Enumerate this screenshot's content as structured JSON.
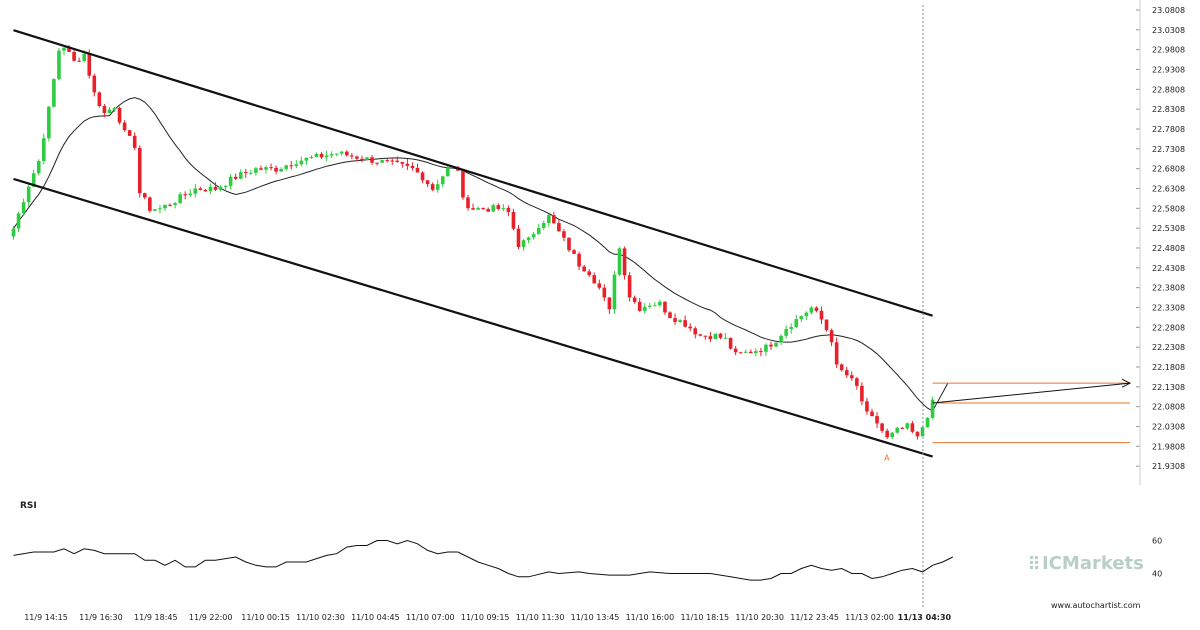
{
  "chart_data": {
    "type": "candlestick",
    "colors": {
      "up": "#2ecc40",
      "down": "#e8202a",
      "channel": "#111111",
      "ma": "#222222",
      "level": "#e8742a",
      "cursor": "#888888",
      "grid": "#dddddd"
    },
    "y_axis": {
      "range": [
        21.8908,
        23.0808
      ],
      "ticks": [
        "23.0808",
        "23.0308",
        "22.9808",
        "22.9308",
        "22.8808",
        "22.8308",
        "22.7808",
        "22.7308",
        "22.6808",
        "22.6308",
        "22.5808",
        "22.5308",
        "22.4808",
        "22.4308",
        "22.3808",
        "22.3308",
        "22.2808",
        "22.2308",
        "22.1808",
        "22.1308",
        "22.0808",
        "22.0308",
        "21.9808",
        "21.9308"
      ]
    },
    "x_axis": {
      "ticks": [
        "11/9 14:15",
        "11/9 16:30",
        "11/9 18:45",
        "11/9 22:00",
        "11/10 00:15",
        "11/10 02:30",
        "11/10 04:45",
        "11/10 07:00",
        "11/10 09:15",
        "11/10 11:30",
        "11/10 13:45",
        "11/10 16:00",
        "11/10 18:15",
        "11/10 20:30",
        "11/12 23:45",
        "11/13 02:00",
        "11/13 04:30"
      ],
      "highlighted": "11/13 04:30"
    },
    "channel": {
      "upper": {
        "from": [
          0,
          23.03
        ],
        "to": [
          182,
          22.31
        ]
      },
      "lower": {
        "from": [
          0,
          22.655
        ],
        "to": [
          182,
          21.955
        ]
      }
    },
    "levels": [
      22.14,
      22.09,
      21.99
    ],
    "projection": {
      "from": [
        182,
        22.09
      ],
      "to": [
        224,
        22.14
      ]
    },
    "point_label": "A",
    "point_label_at": [
      173,
      21.955
    ],
    "rsi": {
      "label": "RSI",
      "ticks": [
        "60",
        "40"
      ],
      "range": [
        30,
        70
      ]
    },
    "watermark": "ICMarkets",
    "source": "www.autochartist.com"
  }
}
